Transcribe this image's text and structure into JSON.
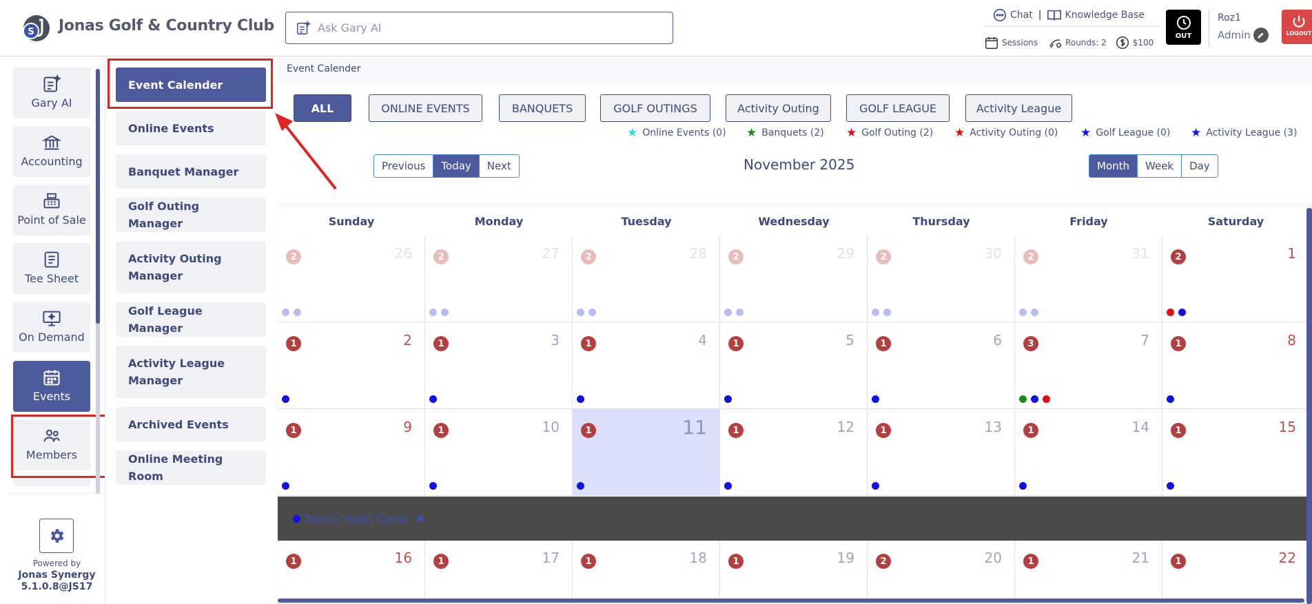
{
  "header": {
    "club_name": "Jonas Golf & Country Club",
    "ask_placeholder": "Ask Gary AI",
    "chat": "Chat",
    "sep": "|",
    "knowledge_base": "Knowledge Base",
    "sessions": "Sessions",
    "rounds": "Rounds: 2",
    "amount": "$100",
    "out": "OUT",
    "user_name": "Roz1",
    "user_role": "Admin",
    "logout": "LOGOUT"
  },
  "rail": {
    "items": [
      {
        "label": "Gary AI"
      },
      {
        "label": "Accounting"
      },
      {
        "label": "Point of Sale"
      },
      {
        "label": "Tee Sheet"
      },
      {
        "label": "On Demand"
      },
      {
        "label": "Events"
      },
      {
        "label": "Members"
      }
    ],
    "powered_by": "Powered by",
    "version_line1": "Jonas Synergy",
    "version_line2": "5.1.0.8@JS17"
  },
  "submenu": {
    "items": [
      {
        "label": "Event Calender"
      },
      {
        "label": "Online Events"
      },
      {
        "label": "Banquet Manager"
      },
      {
        "label": "Golf Outing Manager"
      },
      {
        "label": "Activity Outing Manager"
      },
      {
        "label": "Golf League Manager"
      },
      {
        "label": "Activity League Manager"
      },
      {
        "label": "Archived Events"
      },
      {
        "label": "Online Meeting Room"
      }
    ]
  },
  "main": {
    "breadcrumb": "Event Calender",
    "filters": [
      "ALL",
      "ONLINE EVENTS",
      "BANQUETS",
      "GOLF OUTINGS",
      "Activity Outing",
      "GOLF LEAGUE",
      "Activity League"
    ],
    "legend": [
      {
        "label": "Online Events (0)",
        "color": "#38d6e8"
      },
      {
        "label": "Banquets (2)",
        "color": "#1a8a1a"
      },
      {
        "label": "Golf Outing (2)",
        "color": "#e01010"
      },
      {
        "label": "Activity Outing (0)",
        "color": "#e01010"
      },
      {
        "label": "Golf League (0)",
        "color": "#1010e0"
      },
      {
        "label": "Activity League (3)",
        "color": "#1010e0"
      }
    ],
    "nav": {
      "prev": "Previous",
      "today": "Today",
      "next": "Next"
    },
    "month_title": "November 2025",
    "views": {
      "month": "Month",
      "week": "Week",
      "day": "Day"
    }
  },
  "calendar": {
    "weekdays": [
      "Sunday",
      "Monday",
      "Tuesday",
      "Wednesday",
      "Thursday",
      "Friday",
      "Saturday"
    ],
    "weeks": [
      [
        {
          "day": "26",
          "count": "2",
          "faded": true,
          "dots": [
            "#b8bdf0",
            "#b8bdf0"
          ]
        },
        {
          "day": "27",
          "count": "2",
          "faded": true,
          "dots": [
            "#b8bdf0",
            "#b8bdf0"
          ]
        },
        {
          "day": "28",
          "count": "2",
          "faded": true,
          "dots": [
            "#b8bdf0",
            "#b8bdf0"
          ]
        },
        {
          "day": "29",
          "count": "2",
          "faded": true,
          "dots": [
            "#b8bdf0",
            "#b8bdf0"
          ]
        },
        {
          "day": "30",
          "count": "2",
          "faded": true,
          "dots": [
            "#b8bdf0",
            "#b8bdf0"
          ]
        },
        {
          "day": "31",
          "count": "2",
          "faded": true,
          "dots": [
            "#b8bdf0",
            "#b8bdf0"
          ]
        },
        {
          "day": "1",
          "count": "2",
          "faded": false,
          "weekend": true,
          "dots": [
            "#e01010",
            "#1010e0"
          ]
        }
      ],
      [
        {
          "day": "2",
          "count": "1",
          "weekend": true,
          "dots": [
            "#1010e0"
          ]
        },
        {
          "day": "3",
          "count": "1",
          "dots": [
            "#1010e0"
          ]
        },
        {
          "day": "4",
          "count": "1",
          "dots": [
            "#1010e0"
          ]
        },
        {
          "day": "5",
          "count": "1",
          "dots": [
            "#1010e0"
          ]
        },
        {
          "day": "6",
          "count": "1",
          "dots": [
            "#1010e0"
          ]
        },
        {
          "day": "7",
          "count": "3",
          "dots": [
            "#1a8a1a",
            "#1010e0",
            "#e01010"
          ]
        },
        {
          "day": "8",
          "count": "1",
          "weekend": true,
          "dots": [
            "#1010e0"
          ]
        }
      ],
      [
        {
          "day": "9",
          "count": "1",
          "weekend": true,
          "dots": [
            "#1010e0"
          ]
        },
        {
          "day": "10",
          "count": "1",
          "dots": [
            "#1010e0"
          ]
        },
        {
          "day": "11",
          "count": "1",
          "today": true,
          "dots": [
            "#1010e0"
          ]
        },
        {
          "day": "12",
          "count": "1",
          "dots": [
            "#1010e0"
          ]
        },
        {
          "day": "13",
          "count": "1",
          "dots": [
            "#1010e0"
          ]
        },
        {
          "day": "14",
          "count": "1",
          "dots": [
            "#1010e0"
          ]
        },
        {
          "day": "15",
          "count": "1",
          "weekend": true,
          "dots": [
            "#1010e0"
          ]
        }
      ],
      [
        {
          "day": "16",
          "count": "1",
          "weekend": true,
          "dots": []
        },
        {
          "day": "17",
          "count": "1",
          "dots": []
        },
        {
          "day": "18",
          "count": "1",
          "dots": []
        },
        {
          "day": "19",
          "count": "1",
          "dots": []
        },
        {
          "day": "20",
          "count": "2",
          "dots": []
        },
        {
          "day": "21",
          "count": "1",
          "dots": []
        },
        {
          "day": "22",
          "count": "1",
          "weekend": true,
          "dots": []
        }
      ]
    ],
    "popup_event": {
      "title": "Tennis Youth Camp",
      "close": "✖",
      "color": "#1010e0"
    }
  }
}
